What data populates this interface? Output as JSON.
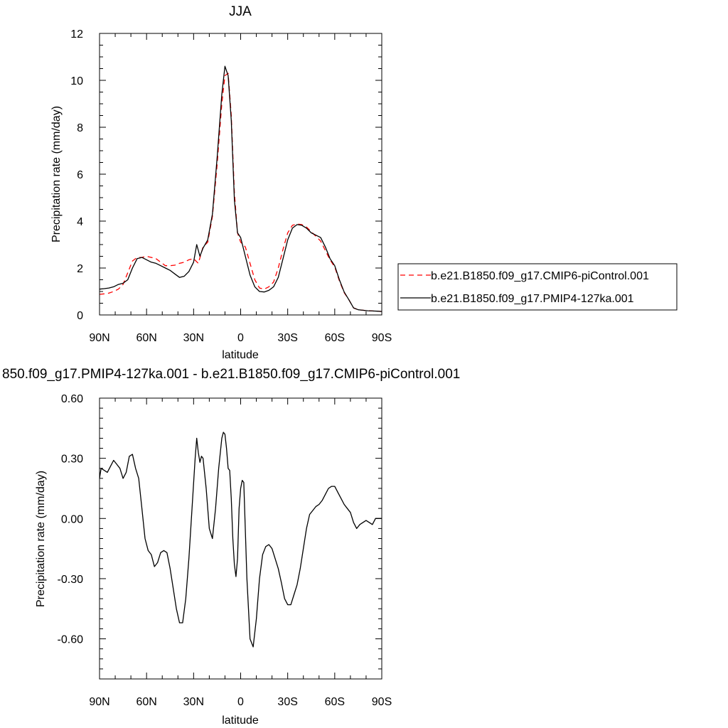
{
  "chart_data": [
    {
      "type": "line",
      "title": "JJA",
      "xlabel": "latitude",
      "ylabel": "Precipitation rate (mm/day)",
      "xlim": [
        90,
        -90
      ],
      "ylim": [
        0,
        12
      ],
      "x_ticks": [
        {
          "value": 90,
          "label": "90N"
        },
        {
          "value": 60,
          "label": "60N"
        },
        {
          "value": 30,
          "label": "30N"
        },
        {
          "value": 0,
          "label": "0"
        },
        {
          "value": -30,
          "label": "30S"
        },
        {
          "value": -60,
          "label": "60S"
        },
        {
          "value": -90,
          "label": "90S"
        }
      ],
      "y_ticks": [
        {
          "value": 0,
          "label": "0"
        },
        {
          "value": 2,
          "label": "2"
        },
        {
          "value": 4,
          "label": "4"
        },
        {
          "value": 6,
          "label": "6"
        },
        {
          "value": 8,
          "label": "8"
        },
        {
          "value": 10,
          "label": "10"
        },
        {
          "value": 12,
          "label": "12"
        }
      ],
      "grid": false,
      "legend_position": "right",
      "series": [
        {
          "name": "b.e21.B1850.f09_g17.CMIP6-piControl.001",
          "color": "#ff0000",
          "style": "dashed",
          "x": [
            90,
            87,
            84,
            81,
            78,
            75,
            72,
            69,
            66,
            63,
            60,
            57,
            54,
            51,
            48,
            45,
            42,
            39,
            36,
            33,
            30,
            27,
            24,
            21,
            18,
            15,
            12,
            10,
            8,
            6,
            4,
            2,
            0,
            -3,
            -6,
            -9,
            -12,
            -15,
            -18,
            -21,
            -24,
            -27,
            -30,
            -33,
            -36,
            -39,
            -42,
            -45,
            -48,
            -51,
            -54,
            -57,
            -60,
            -63,
            -66,
            -69,
            -72,
            -75,
            -78,
            -81,
            -84,
            -87,
            -90
          ],
          "y": [
            0.88,
            0.9,
            0.93,
            1.0,
            1.1,
            1.3,
            1.8,
            2.3,
            2.45,
            2.45,
            2.5,
            2.45,
            2.4,
            2.25,
            2.1,
            2.1,
            2.12,
            2.2,
            2.25,
            2.35,
            2.4,
            2.2,
            2.9,
            3.1,
            4.2,
            6.4,
            9.0,
            10.2,
            10.3,
            8.5,
            5.2,
            3.5,
            3.1,
            2.9,
            2.2,
            1.5,
            1.15,
            1.1,
            1.2,
            1.4,
            2.0,
            2.8,
            3.5,
            3.82,
            3.88,
            3.85,
            3.75,
            3.55,
            3.35,
            3.15,
            2.75,
            2.35,
            2.05,
            1.45,
            0.95,
            0.65,
            0.3,
            0.22,
            0.2,
            0.18,
            0.17,
            0.16,
            0.15
          ]
        },
        {
          "name": "b.e21.B1850.f09_g17.PMIP4-127ka.001",
          "color": "#000000",
          "style": "solid",
          "x": [
            90,
            87,
            84,
            81,
            78,
            75,
            72,
            69,
            66,
            63,
            60,
            57,
            54,
            51,
            48,
            45,
            42,
            39,
            36,
            33,
            30,
            28,
            26,
            24,
            21,
            18,
            15,
            12,
            10,
            8,
            6,
            4,
            2,
            0,
            -3,
            -6,
            -9,
            -12,
            -15,
            -18,
            -21,
            -24,
            -27,
            -30,
            -33,
            -36,
            -39,
            -42,
            -45,
            -48,
            -51,
            -54,
            -57,
            -60,
            -63,
            -66,
            -69,
            -72,
            -75,
            -78,
            -81,
            -84,
            -87,
            -90
          ],
          "y": [
            1.1,
            1.12,
            1.15,
            1.2,
            1.3,
            1.35,
            1.5,
            2.0,
            2.4,
            2.45,
            2.35,
            2.25,
            2.2,
            2.1,
            2.0,
            1.9,
            1.75,
            1.6,
            1.65,
            1.85,
            2.25,
            3.0,
            2.5,
            2.85,
            3.2,
            4.3,
            6.7,
            9.4,
            10.6,
            10.2,
            8.3,
            4.9,
            3.5,
            3.3,
            2.5,
            1.7,
            1.2,
            1.0,
            0.98,
            1.05,
            1.2,
            1.6,
            2.4,
            3.2,
            3.7,
            3.85,
            3.82,
            3.7,
            3.5,
            3.4,
            3.3,
            2.9,
            2.4,
            2.1,
            1.5,
            0.98,
            0.65,
            0.3,
            0.22,
            0.2,
            0.18,
            0.17,
            0.16,
            0.15
          ]
        }
      ]
    },
    {
      "type": "line",
      "title": "850.f09_g17.PMIP4-127ka.001 - b.e21.B1850.f09_g17.CMIP6-piControl.001",
      "xlabel": "latitude",
      "ylabel": "Precipitation rate (mm/day)",
      "xlim": [
        90,
        -90
      ],
      "ylim": [
        -0.8,
        0.6
      ],
      "x_ticks": [
        {
          "value": 90,
          "label": "90N"
        },
        {
          "value": 60,
          "label": "60N"
        },
        {
          "value": 30,
          "label": "30N"
        },
        {
          "value": 0,
          "label": "0"
        },
        {
          "value": -30,
          "label": "30S"
        },
        {
          "value": -60,
          "label": "60S"
        },
        {
          "value": -90,
          "label": "90S"
        }
      ],
      "y_ticks": [
        {
          "value": 0.6,
          "label": "0.60"
        },
        {
          "value": 0.3,
          "label": "0.30"
        },
        {
          "value": 0.0,
          "label": "0.00"
        },
        {
          "value": -0.3,
          "label": "-0.30"
        },
        {
          "value": -0.6,
          "label": "-0.60"
        }
      ],
      "grid": false,
      "series": [
        {
          "color": "#000000",
          "style": "solid",
          "x": [
            90,
            89,
            87,
            85,
            83,
            81,
            79,
            77,
            75,
            73,
            71,
            69,
            67,
            65,
            63,
            61,
            59,
            57,
            55,
            53,
            51,
            49,
            47,
            45,
            43,
            41,
            39,
            37,
            35,
            33,
            31,
            29,
            28,
            27,
            26,
            25,
            24,
            22,
            20,
            18,
            16,
            14,
            12,
            11,
            10,
            9,
            8,
            7,
            6,
            5,
            4,
            3,
            2,
            1,
            0,
            -1,
            -2,
            -4,
            -6,
            -8,
            -10,
            -12,
            -14,
            -16,
            -18,
            -20,
            -22,
            -24,
            -26,
            -28,
            -30,
            -32,
            -34,
            -36,
            -38,
            -40,
            -42,
            -44,
            -46,
            -48,
            -50,
            -52,
            -54,
            -56,
            -58,
            -60,
            -62,
            -64,
            -66,
            -68,
            -70,
            -72,
            -74,
            -76,
            -78,
            -80,
            -82,
            -84,
            -86,
            -88,
            -90
          ],
          "y": [
            0.2,
            0.25,
            0.24,
            0.23,
            0.26,
            0.29,
            0.27,
            0.25,
            0.2,
            0.23,
            0.31,
            0.32,
            0.25,
            0.2,
            0.05,
            -0.1,
            -0.16,
            -0.18,
            -0.24,
            -0.22,
            -0.17,
            -0.16,
            -0.17,
            -0.25,
            -0.35,
            -0.45,
            -0.52,
            -0.52,
            -0.4,
            -0.2,
            0.05,
            0.3,
            0.4,
            0.33,
            0.28,
            0.31,
            0.3,
            0.15,
            -0.05,
            -0.1,
            0.05,
            0.25,
            0.4,
            0.43,
            0.42,
            0.35,
            0.25,
            0.24,
            0.1,
            -0.1,
            -0.23,
            -0.29,
            -0.2,
            0.05,
            0.15,
            0.19,
            0.18,
            -0.3,
            -0.6,
            -0.64,
            -0.5,
            -0.3,
            -0.18,
            -0.14,
            -0.13,
            -0.15,
            -0.2,
            -0.25,
            -0.32,
            -0.4,
            -0.43,
            -0.43,
            -0.38,
            -0.33,
            -0.25,
            -0.15,
            -0.05,
            0.02,
            0.04,
            0.06,
            0.07,
            0.09,
            0.12,
            0.15,
            0.16,
            0.16,
            0.13,
            0.1,
            0.07,
            0.05,
            0.03,
            -0.02,
            -0.05,
            -0.03,
            -0.02,
            -0.01,
            -0.02,
            -0.03,
            0.0,
            0.0,
            0.0
          ]
        }
      ]
    }
  ],
  "colors": {
    "background": "#ffffff",
    "axes": "#000000",
    "series_control": "#ff0000",
    "series_127ka": "#000000"
  }
}
